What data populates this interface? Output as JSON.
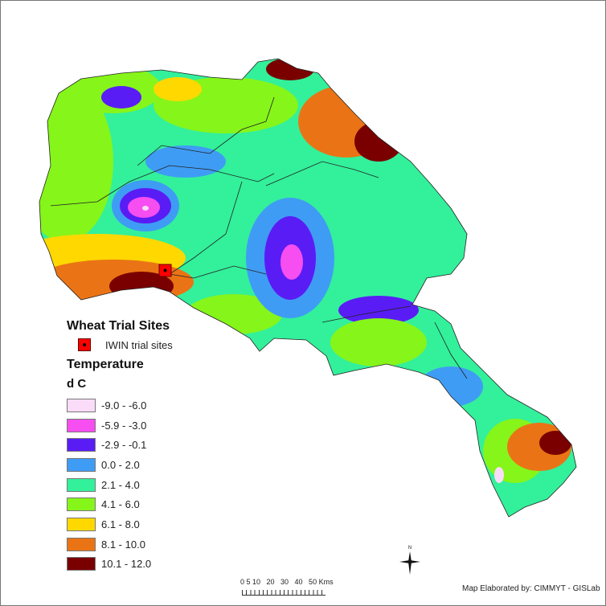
{
  "legend": {
    "title": "Wheat Trial Sites",
    "site_label": "IWIN trial sites",
    "site_color": "#ff0000",
    "temperature_title": "Temperature",
    "unit": "d C",
    "classes": [
      {
        "label": "-9.0 - -6.0",
        "color": "#fbdcf8"
      },
      {
        "label": "-5.9 - -3.0",
        "color": "#f64ef0"
      },
      {
        "label": "-2.9 - -0.1",
        "color": "#5a1cf5"
      },
      {
        "label": "0.0 - 2.0",
        "color": "#3f9cf5"
      },
      {
        "label": "2.1 - 4.0",
        "color": "#33f09b"
      },
      {
        "label": "4.1 - 6.0",
        "color": "#86f51a"
      },
      {
        "label": "6.1 - 8.0",
        "color": "#ffd800"
      },
      {
        "label": "8.1 - 10.0",
        "color": "#ea7415"
      },
      {
        "label": "10.1 - 12.0",
        "color": "#7a0000"
      }
    ]
  },
  "scale": {
    "label": "0 5 10   20   30   40   50 Kms"
  },
  "north_label": "N",
  "credit": "Map Elaborated by: CIMMYT - GISLab"
}
